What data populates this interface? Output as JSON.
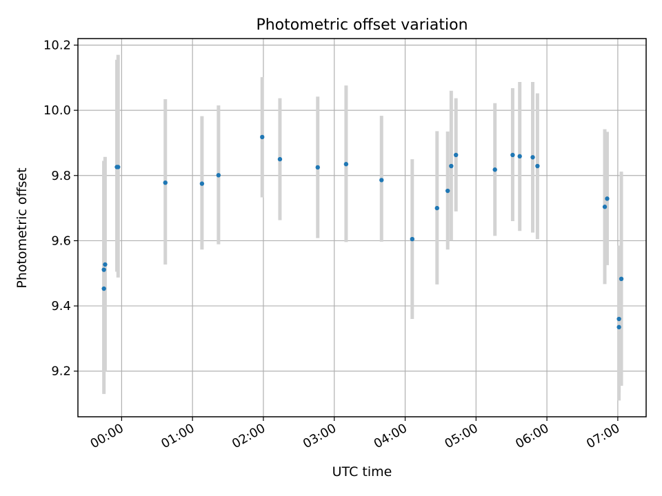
{
  "chart_data": {
    "type": "scatter",
    "title": "Photometric offset variation",
    "xlabel": "UTC time",
    "ylabel": "Photometric offset",
    "xlim": [
      "-00:37",
      "07:24"
    ],
    "ylim": [
      9.06,
      10.22
    ],
    "x_ticks": [
      "00:00",
      "01:00",
      "02:00",
      "03:00",
      "04:00",
      "05:00",
      "06:00",
      "07:00"
    ],
    "y_ticks": [
      9.2,
      9.4,
      9.6,
      9.8,
      10.0,
      10.2
    ],
    "grid": true,
    "marker_color": "#1f77b4",
    "errorbar_color": "#d3d3d3",
    "points": [
      {
        "x": "-00:15",
        "y": 9.453,
        "ylow": 9.13,
        "yhigh": 9.845
      },
      {
        "x": "-00:15",
        "y": 9.511,
        "ylow": 9.2,
        "yhigh": 9.845
      },
      {
        "x": "-00:14",
        "y": 9.527,
        "ylow": 9.2,
        "yhigh": 9.857
      },
      {
        "x": "-00:04",
        "y": 9.826,
        "ylow": 9.505,
        "yhigh": 10.155
      },
      {
        "x": "-00:03",
        "y": 9.826,
        "ylow": 9.487,
        "yhigh": 10.17
      },
      {
        "x": "00:37",
        "y": 9.778,
        "ylow": 9.527,
        "yhigh": 10.034
      },
      {
        "x": "01:08",
        "y": 9.775,
        "ylow": 9.573,
        "yhigh": 9.982
      },
      {
        "x": "01:22",
        "y": 9.801,
        "ylow": 9.589,
        "yhigh": 10.015
      },
      {
        "x": "01:59",
        "y": 9.918,
        "ylow": 9.733,
        "yhigh": 10.102
      },
      {
        "x": "02:14",
        "y": 9.85,
        "ylow": 9.663,
        "yhigh": 10.037
      },
      {
        "x": "02:46",
        "y": 9.825,
        "ylow": 9.608,
        "yhigh": 10.042
      },
      {
        "x": "03:10",
        "y": 9.835,
        "ylow": 9.596,
        "yhigh": 10.076
      },
      {
        "x": "03:40",
        "y": 9.786,
        "ylow": 9.597,
        "yhigh": 9.983
      },
      {
        "x": "04:06",
        "y": 9.605,
        "ylow": 9.36,
        "yhigh": 9.85
      },
      {
        "x": "04:27",
        "y": 9.7,
        "ylow": 9.466,
        "yhigh": 9.936
      },
      {
        "x": "04:36",
        "y": 9.753,
        "ylow": 9.573,
        "yhigh": 9.935
      },
      {
        "x": "04:39",
        "y": 9.829,
        "ylow": 9.6,
        "yhigh": 10.06
      },
      {
        "x": "04:43",
        "y": 9.863,
        "ylow": 9.69,
        "yhigh": 10.037
      },
      {
        "x": "05:16",
        "y": 9.818,
        "ylow": 9.615,
        "yhigh": 10.022
      },
      {
        "x": "05:31",
        "y": 9.863,
        "ylow": 9.66,
        "yhigh": 10.068
      },
      {
        "x": "05:37",
        "y": 9.859,
        "ylow": 9.63,
        "yhigh": 10.087
      },
      {
        "x": "05:48",
        "y": 9.856,
        "ylow": 9.625,
        "yhigh": 10.087
      },
      {
        "x": "05:52",
        "y": 9.829,
        "ylow": 9.605,
        "yhigh": 10.052
      },
      {
        "x": "06:49",
        "y": 9.704,
        "ylow": 9.467,
        "yhigh": 9.942
      },
      {
        "x": "06:51",
        "y": 9.729,
        "ylow": 9.525,
        "yhigh": 9.934
      },
      {
        "x": "07:01",
        "y": 9.36,
        "ylow": 9.135,
        "yhigh": 9.585
      },
      {
        "x": "07:01",
        "y": 9.335,
        "ylow": 9.11,
        "yhigh": 9.56
      },
      {
        "x": "07:03",
        "y": 9.483,
        "ylow": 9.155,
        "yhigh": 9.812
      }
    ]
  }
}
